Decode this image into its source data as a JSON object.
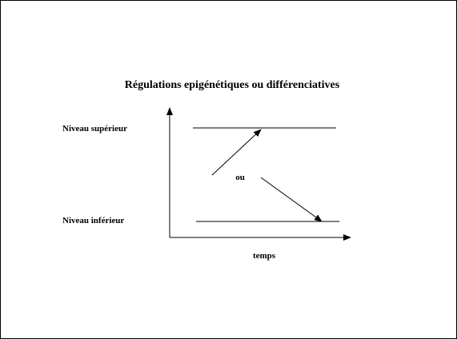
{
  "title": "Régulations epigénétiques ou différenciatives",
  "labels": {
    "upper": "Niveau supérieur",
    "lower": "Niveau inférieur",
    "or": "ou",
    "xaxis": "temps"
  }
}
